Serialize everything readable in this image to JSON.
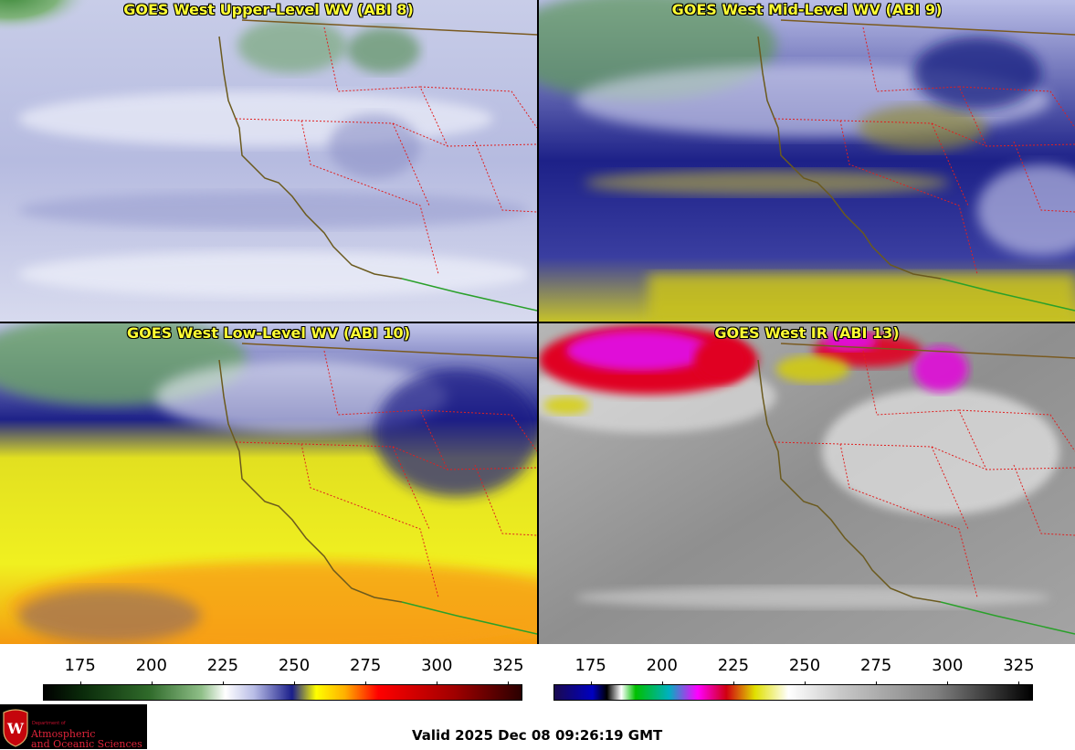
{
  "panels": [
    {
      "id": "upper",
      "title": "GOES West Upper-Level WV (ABI 8)"
    },
    {
      "id": "mid",
      "title": "GOES West Mid-Level WV (ABI 9)"
    },
    {
      "id": "low",
      "title": "GOES West Low-Level WV (ABI 10)"
    },
    {
      "id": "ir",
      "title": "GOES West IR (ABI 13)"
    }
  ],
  "colorbars": {
    "wv": {
      "ticks": [
        "175",
        "200",
        "225",
        "250",
        "275",
        "300",
        "325"
      ],
      "range": [
        162,
        330
      ],
      "tick_values": [
        175,
        200,
        225,
        250,
        275,
        300,
        325
      ]
    },
    "ir": {
      "ticks": [
        "175",
        "200",
        "225",
        "250",
        "275",
        "300",
        "325"
      ],
      "range": [
        162,
        330
      ],
      "tick_values": [
        175,
        200,
        225,
        250,
        275,
        300,
        325
      ]
    }
  },
  "logo": {
    "dept": "Department of",
    "line1": "Atmospheric",
    "line2": "and Oceanic Sciences"
  },
  "valid_time": "Valid 2025 Dec 08 09:26:19 GMT",
  "colors": {
    "title_text": "#ffff33",
    "coastline": "#6b5a1e",
    "state_borders": "#e02020",
    "mexico_border": "#2aa02a"
  }
}
